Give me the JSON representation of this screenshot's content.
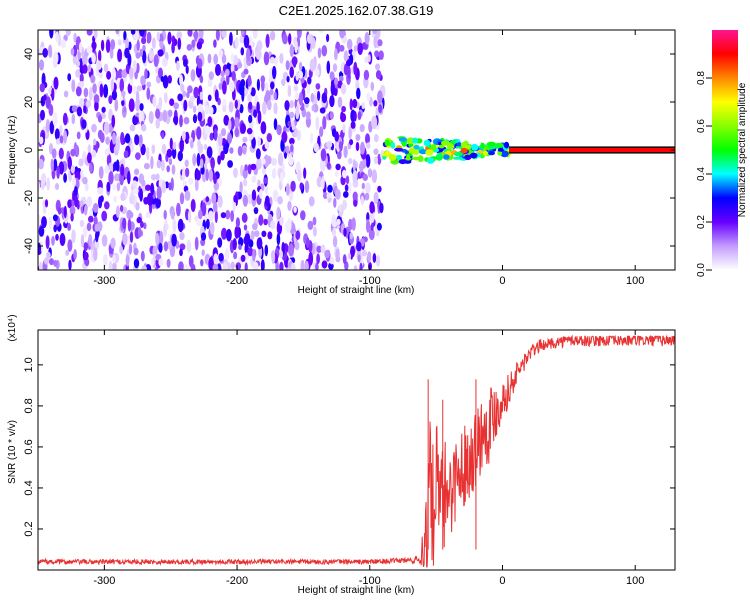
{
  "title": "C2E1.2025.162.07.38.G19",
  "chart_data": [
    {
      "type": "heatmap",
      "xlabel": "Height of straight line (km)",
      "ylabel": "Frequency (Hz)",
      "xlim": [
        -350,
        130
      ],
      "ylim": [
        -50,
        50
      ],
      "xticks": [
        -300,
        -200,
        -100,
        0,
        100
      ],
      "yticks": [
        -40,
        -20,
        0,
        20,
        40
      ],
      "colorbar": {
        "label": "Normalized spectral amplitude",
        "range": [
          0,
          1
        ],
        "ticks": [
          "0.0",
          "0.2",
          "0.4",
          "0.6",
          "0.8"
        ]
      },
      "regions": [
        {
          "x_range": [
            -350,
            -90
          ],
          "freq_range": [
            -50,
            50
          ],
          "amplitude_range": [
            0.02,
            0.28
          ],
          "note_type": "noise"
        },
        {
          "x_range": [
            -90,
            5
          ],
          "freq_center": 0,
          "freq_halfwidth": [
            6,
            2
          ],
          "amplitude_range": [
            0.25,
            0.9
          ]
        },
        {
          "x_range": [
            5,
            130
          ],
          "freq_center": 0,
          "freq_halfwidth": 1.5,
          "amplitude_range": [
            0.95,
            1.0
          ]
        }
      ]
    },
    {
      "type": "line",
      "xlabel": "Height of straight line (km)",
      "ylabel": "SNR (10 * v/v)",
      "y_multiplier": "(x10⁴)",
      "xlim": [
        -350,
        130
      ],
      "ylim": [
        0,
        1.17
      ],
      "xticks": [
        -300,
        -200,
        -100,
        0,
        100
      ],
      "yticks": [
        0.2,
        0.4,
        0.6,
        0.8,
        1.0
      ],
      "ytick_labels": [
        "0.2",
        "0.4",
        "0.6",
        "0.8",
        "1.0"
      ],
      "series": [
        {
          "color": "#e83232",
          "x": [
            -350,
            -300,
            -250,
            -200,
            -150,
            -100,
            -80,
            -62,
            -58,
            -55,
            -52,
            -50,
            -48,
            -45,
            -42,
            -40,
            -35,
            -30,
            -25,
            -20,
            -15,
            -10,
            -5,
            0,
            5,
            10,
            15,
            20,
            25,
            30,
            40,
            50,
            60,
            70,
            80,
            90,
            100,
            110,
            120,
            130
          ],
          "y": [
            0.04,
            0.04,
            0.04,
            0.04,
            0.04,
            0.04,
            0.045,
            0.05,
            0.15,
            0.4,
            0.3,
            0.45,
            0.35,
            0.3,
            0.42,
            0.38,
            0.45,
            0.5,
            0.55,
            0.6,
            0.68,
            0.72,
            0.78,
            0.83,
            0.88,
            0.95,
            1.0,
            1.05,
            1.08,
            1.1,
            1.11,
            1.12,
            1.12,
            1.12,
            1.12,
            1.12,
            1.12,
            1.12,
            1.12,
            1.12
          ],
          "noise": [
            0.012,
            0.012,
            0.012,
            0.012,
            0.012,
            0.012,
            0.012,
            0.02,
            0.3,
            0.35,
            0.3,
            0.3,
            0.28,
            0.28,
            0.25,
            0.25,
            0.2,
            0.2,
            0.2,
            0.2,
            0.2,
            0.2,
            0.15,
            0.1,
            0.08,
            0.06,
            0.05,
            0.04,
            0.03,
            0.03,
            0.03,
            0.03,
            0.03,
            0.03,
            0.03,
            0.03,
            0.03,
            0.03,
            0.03,
            0.03
          ],
          "spikes": [
            {
              "x": -56,
              "y": 0.93
            },
            {
              "x": -45,
              "y": 0.83
            },
            {
              "x": -20,
              "y": 0.93
            }
          ]
        }
      ]
    }
  ]
}
